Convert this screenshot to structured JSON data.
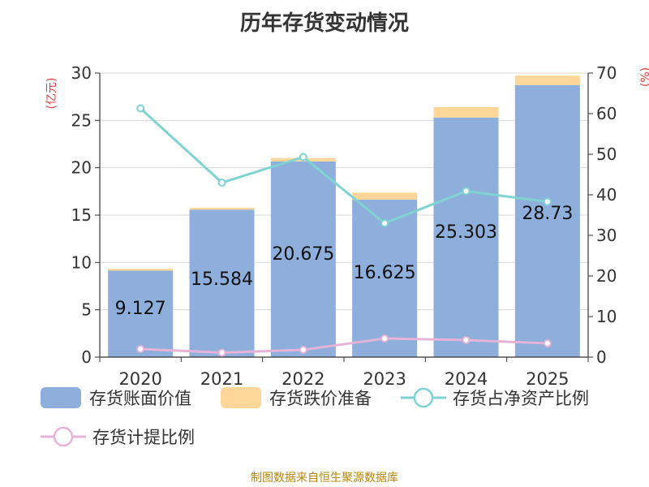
{
  "title": "历年存货变动情况",
  "source": "制图数据来自恒生聚源数据库",
  "left_unit": "(亿元)",
  "right_unit": "(%)",
  "colors": {
    "book_value": "#8eaedb",
    "reserve": "#ffd699",
    "net_asset_ratio": "#7fd3d3",
    "provision_ratio": "#e5b3d8",
    "unit_text": "#e04040",
    "axis": "#333333",
    "grid": "#d9d9d9"
  },
  "chart_data": {
    "type": "bar",
    "categories": [
      "2020",
      "2021",
      "2022",
      "2023",
      "2024",
      "2025"
    ],
    "ylim": [
      0,
      30
    ],
    "y_ticks": [
      0,
      5,
      10,
      15,
      20,
      25,
      30
    ],
    "y2lim": [
      0,
      70
    ],
    "y2_ticks": [
      0,
      10,
      20,
      30,
      40,
      50,
      60,
      70
    ],
    "series": [
      {
        "name": "存货账面价值",
        "type": "bar",
        "axis": "left",
        "stack": "inv",
        "values": [
          9.127,
          15.584,
          20.675,
          16.625,
          25.303,
          28.73
        ],
        "labels": [
          "9.127",
          "15.584",
          "20.675",
          "16.625",
          "25.303",
          "28.73"
        ]
      },
      {
        "name": "存货跌价准备",
        "type": "bar",
        "axis": "left",
        "stack": "inv",
        "values": [
          0.2,
          0.2,
          0.35,
          0.75,
          1.1,
          1.0
        ]
      },
      {
        "name": "存货占净资产比例",
        "type": "line",
        "axis": "right",
        "values": [
          61.3,
          43.0,
          49.3,
          33.0,
          40.9,
          38.3
        ]
      },
      {
        "name": "存货计提比例",
        "type": "line",
        "axis": "right",
        "values": [
          2.0,
          1.1,
          1.8,
          4.6,
          4.2,
          3.4
        ]
      }
    ]
  }
}
